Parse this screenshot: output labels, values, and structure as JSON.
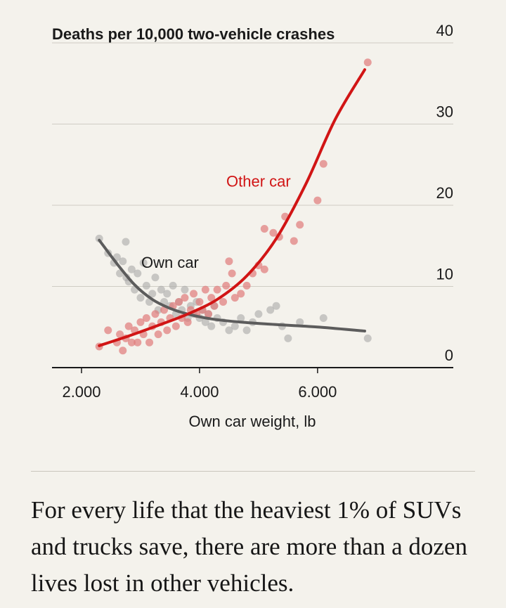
{
  "chart_data": {
    "type": "scatter",
    "ylabel": "Deaths per 10,000 two-vehicle crashes",
    "xlabel": "Own car weight, lb",
    "x_ticks": [
      2000,
      4000,
      6000
    ],
    "x_tick_labels": [
      "2.000",
      "4.000",
      "6.000"
    ],
    "y_ticks": [
      0,
      10,
      20,
      30,
      40
    ],
    "y_tick_labels": [
      "0",
      "10",
      "20",
      "30",
      "40"
    ],
    "xlim": [
      1500,
      8300
    ],
    "ylim": [
      0,
      40
    ],
    "y_axis_side": "right",
    "grid": "horizontal",
    "colors": {
      "other_car": "#d11515",
      "own_car": "#5c5c5c",
      "other_car_points": "#e07a7a",
      "own_car_points": "#a8a8a8"
    },
    "series": [
      {
        "name": "Own car",
        "label_position": [
          3500,
          13.0
        ],
        "trend_x": [
          2300,
          2600,
          2900,
          3200,
          3500,
          3800,
          4200,
          4700,
          5300,
          6000,
          6800
        ],
        "trend_y": [
          15.7,
          12.8,
          10.2,
          8.4,
          7.3,
          6.6,
          6.0,
          5.6,
          5.3,
          5.0,
          4.5
        ],
        "points": [
          [
            2300,
            15.9
          ],
          [
            2450,
            14.1
          ],
          [
            2550,
            12.9
          ],
          [
            2600,
            13.6
          ],
          [
            2650,
            11.6
          ],
          [
            2700,
            13.1
          ],
          [
            2750,
            15.5
          ],
          [
            2760,
            11.1
          ],
          [
            2800,
            10.6
          ],
          [
            2850,
            12.1
          ],
          [
            2900,
            9.6
          ],
          [
            2950,
            11.6
          ],
          [
            3000,
            8.6
          ],
          [
            3050,
            12.9
          ],
          [
            3100,
            10.1
          ],
          [
            3150,
            8.1
          ],
          [
            3200,
            9.1
          ],
          [
            3250,
            11.1
          ],
          [
            3300,
            7.1
          ],
          [
            3350,
            9.6
          ],
          [
            3400,
            8.1
          ],
          [
            3450,
            9.1
          ],
          [
            3500,
            7.6
          ],
          [
            3550,
            10.1
          ],
          [
            3600,
            6.6
          ],
          [
            3650,
            8.1
          ],
          [
            3700,
            7.1
          ],
          [
            3750,
            9.6
          ],
          [
            3800,
            6.1
          ],
          [
            3850,
            7.6
          ],
          [
            3900,
            6.6
          ],
          [
            3950,
            8.1
          ],
          [
            4000,
            6.1
          ],
          [
            4050,
            7.1
          ],
          [
            4100,
            5.6
          ],
          [
            4150,
            6.6
          ],
          [
            4200,
            5.1
          ],
          [
            4250,
            7.6
          ],
          [
            4300,
            6.1
          ],
          [
            4400,
            5.6
          ],
          [
            4500,
            4.6
          ],
          [
            4600,
            5.1
          ],
          [
            4700,
            6.1
          ],
          [
            4800,
            4.6
          ],
          [
            4900,
            5.6
          ],
          [
            5000,
            6.6
          ],
          [
            5200,
            7.1
          ],
          [
            5300,
            7.6
          ],
          [
            5400,
            5.1
          ],
          [
            5500,
            3.6
          ],
          [
            5700,
            5.6
          ],
          [
            6100,
            6.1
          ],
          [
            6850,
            3.6
          ]
        ]
      },
      {
        "name": "Other car",
        "label_position": [
          5000,
          23.0
        ],
        "trend_x": [
          2300,
          2800,
          3300,
          3800,
          4300,
          4800,
          5300,
          5800,
          6300,
          6800
        ],
        "trend_y": [
          2.7,
          3.9,
          5.2,
          6.6,
          8.4,
          11.3,
          15.9,
          22.6,
          30.6,
          36.7
        ],
        "points": [
          [
            2300,
            2.6
          ],
          [
            2450,
            4.6
          ],
          [
            2600,
            3.1
          ],
          [
            2650,
            4.1
          ],
          [
            2700,
            2.1
          ],
          [
            2750,
            3.6
          ],
          [
            2800,
            5.1
          ],
          [
            2850,
            3.1
          ],
          [
            2900,
            4.6
          ],
          [
            2950,
            3.1
          ],
          [
            3000,
            5.6
          ],
          [
            3050,
            4.1
          ],
          [
            3100,
            6.1
          ],
          [
            3150,
            3.1
          ],
          [
            3200,
            5.1
          ],
          [
            3250,
            6.6
          ],
          [
            3300,
            4.1
          ],
          [
            3350,
            5.6
          ],
          [
            3400,
            7.1
          ],
          [
            3450,
            4.6
          ],
          [
            3500,
            6.1
          ],
          [
            3550,
            7.6
          ],
          [
            3600,
            5.1
          ],
          [
            3650,
            8.1
          ],
          [
            3700,
            6.1
          ],
          [
            3750,
            8.6
          ],
          [
            3800,
            5.6
          ],
          [
            3850,
            7.1
          ],
          [
            3900,
            9.1
          ],
          [
            3950,
            6.6
          ],
          [
            4000,
            8.1
          ],
          [
            4050,
            7.1
          ],
          [
            4100,
            9.6
          ],
          [
            4150,
            6.6
          ],
          [
            4200,
            8.6
          ],
          [
            4250,
            7.6
          ],
          [
            4300,
            9.6
          ],
          [
            4400,
            8.1
          ],
          [
            4450,
            10.1
          ],
          [
            4500,
            13.1
          ],
          [
            4550,
            11.6
          ],
          [
            4600,
            8.6
          ],
          [
            4700,
            9.1
          ],
          [
            4800,
            10.1
          ],
          [
            4900,
            11.6
          ],
          [
            5000,
            12.6
          ],
          [
            5100,
            12.1
          ],
          [
            5100,
            17.1
          ],
          [
            5250,
            16.6
          ],
          [
            5350,
            16.1
          ],
          [
            5450,
            18.6
          ],
          [
            5600,
            15.6
          ],
          [
            5700,
            17.6
          ],
          [
            6000,
            20.6
          ],
          [
            6100,
            25.1
          ],
          [
            6850,
            37.6
          ]
        ]
      }
    ]
  },
  "caption": "For every life that the heaviest 1% of SUVs and trucks save, there are more than a dozen lives lost in other vehicles."
}
